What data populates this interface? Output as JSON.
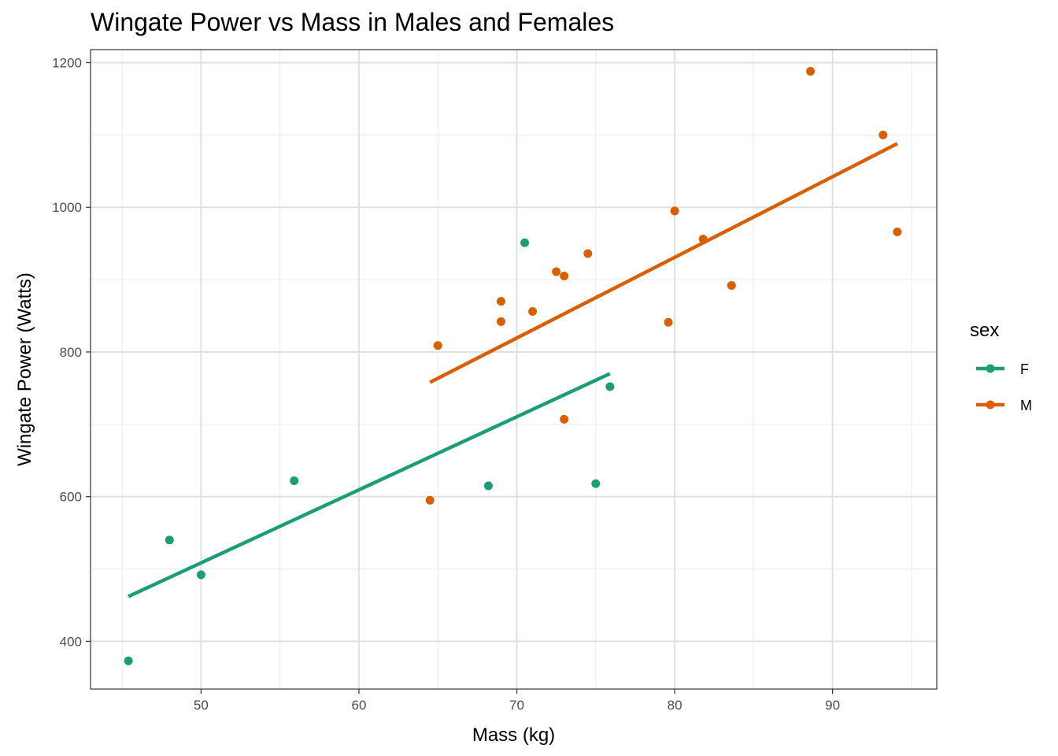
{
  "chart_data": {
    "type": "scatter",
    "title": "Wingate Power vs Mass in Males and Females",
    "xlabel": "Mass (kg)",
    "ylabel": "Wingate Power (Watts)",
    "xlim": [
      43,
      96.6
    ],
    "ylim": [
      334,
      1218
    ],
    "xticks": [
      50,
      60,
      70,
      80,
      90
    ],
    "yticks": [
      400,
      600,
      800,
      1000,
      1200
    ],
    "grid": true,
    "legend": {
      "title": "sex",
      "position": "right"
    },
    "series": [
      {
        "name": "F",
        "color": "#1b9e77",
        "points": [
          [
            45.4,
            373
          ],
          [
            48.0,
            540
          ],
          [
            50.0,
            492
          ],
          [
            55.9,
            622
          ],
          [
            68.2,
            615
          ],
          [
            70.5,
            951
          ],
          [
            75.0,
            618
          ],
          [
            75.9,
            752
          ]
        ],
        "fit": [
          [
            45.4,
            462
          ],
          [
            75.9,
            770
          ]
        ]
      },
      {
        "name": "M",
        "color": "#d95f02",
        "points": [
          [
            64.5,
            595
          ],
          [
            65.0,
            809
          ],
          [
            69.0,
            870
          ],
          [
            69.0,
            842
          ],
          [
            71.0,
            856
          ],
          [
            72.5,
            911
          ],
          [
            73.0,
            905
          ],
          [
            73.0,
            707
          ],
          [
            74.5,
            936
          ],
          [
            79.6,
            841
          ],
          [
            80.0,
            995
          ],
          [
            81.8,
            956
          ],
          [
            83.6,
            892
          ],
          [
            88.6,
            1188
          ],
          [
            93.2,
            1100
          ],
          [
            94.1,
            966
          ]
        ],
        "fit": [
          [
            64.5,
            758
          ],
          [
            94.1,
            1088
          ]
        ]
      }
    ]
  }
}
